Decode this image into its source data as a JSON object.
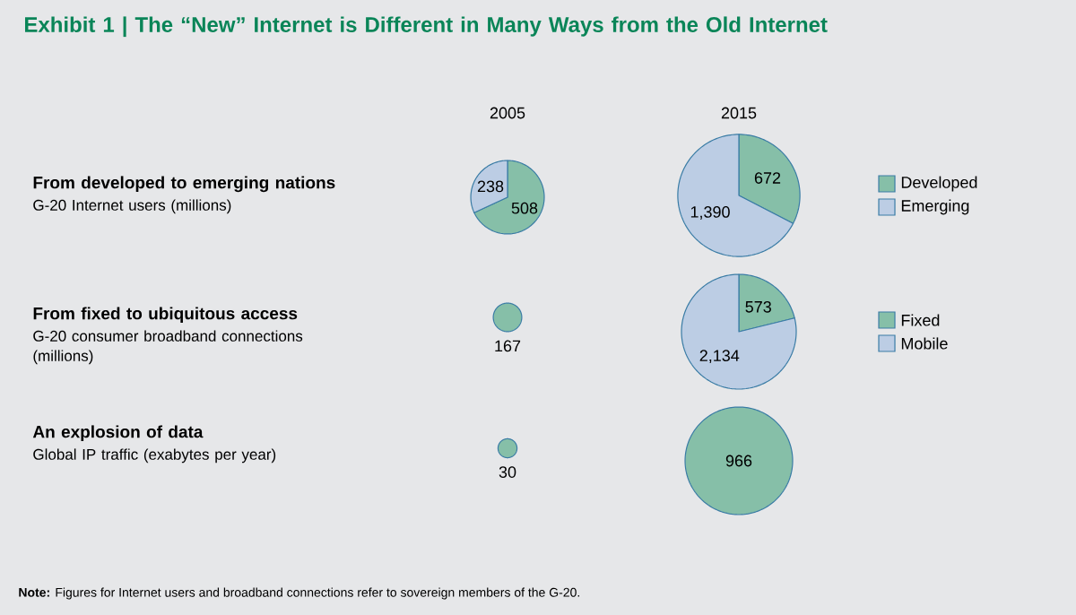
{
  "chart_data": [
    {
      "type": "other",
      "title": "Exhibit 1 | The “New” Internet is Different in Many Ways from the Old Internet",
      "annotations": [
        "From developed to emerging nations",
        "G-20 Internet users (millions)",
        "From fixed to ubiquitous access",
        "G-20 consumer broadband connections (millions)",
        "An explosion of data",
        "Global IP traffic (exabytes per year)",
        "**Note:** Figures for Internet users and broadband connections refer to sovereign members of the G-20."
      ]
    },
    {
      "type": "pie",
      "title": "2005",
      "categories": [
        null,
        null
      ],
      "values": [
        508,
        238
      ],
      "value_labels": [
        "508",
        "238"
      ],
      "colors": [
        "#86bfa8",
        "#bccde4"
      ]
    },
    {
      "type": "pie",
      "title": "2015",
      "categories": [
        "Developed",
        "Emerging"
      ],
      "values": [
        672,
        1390
      ],
      "value_labels": [
        "672",
        "1,390"
      ],
      "colors": [
        "#86bfa8",
        "#bccde4"
      ],
      "legend": "right"
    },
    {
      "type": "other",
      "values": [
        167
      ],
      "value_labels": [
        "167"
      ],
      "colors": [
        "#86bfa8"
      ]
    },
    {
      "type": "pie",
      "categories": [
        "Fixed",
        "Mobile"
      ],
      "values": [
        573,
        2134
      ],
      "value_labels": [
        "573",
        "2,134"
      ],
      "colors": [
        "#86bfa8",
        "#bccde4"
      ],
      "legend": "right"
    },
    {
      "type": "other",
      "values": [
        30
      ],
      "value_labels": [
        "30"
      ],
      "colors": [
        "#86bfa8"
      ]
    },
    {
      "type": "pie",
      "categories": [
        null
      ],
      "values": [
        966
      ],
      "value_labels": [
        "966"
      ],
      "colors": [
        "#86bfa8"
      ]
    }
  ]
}
